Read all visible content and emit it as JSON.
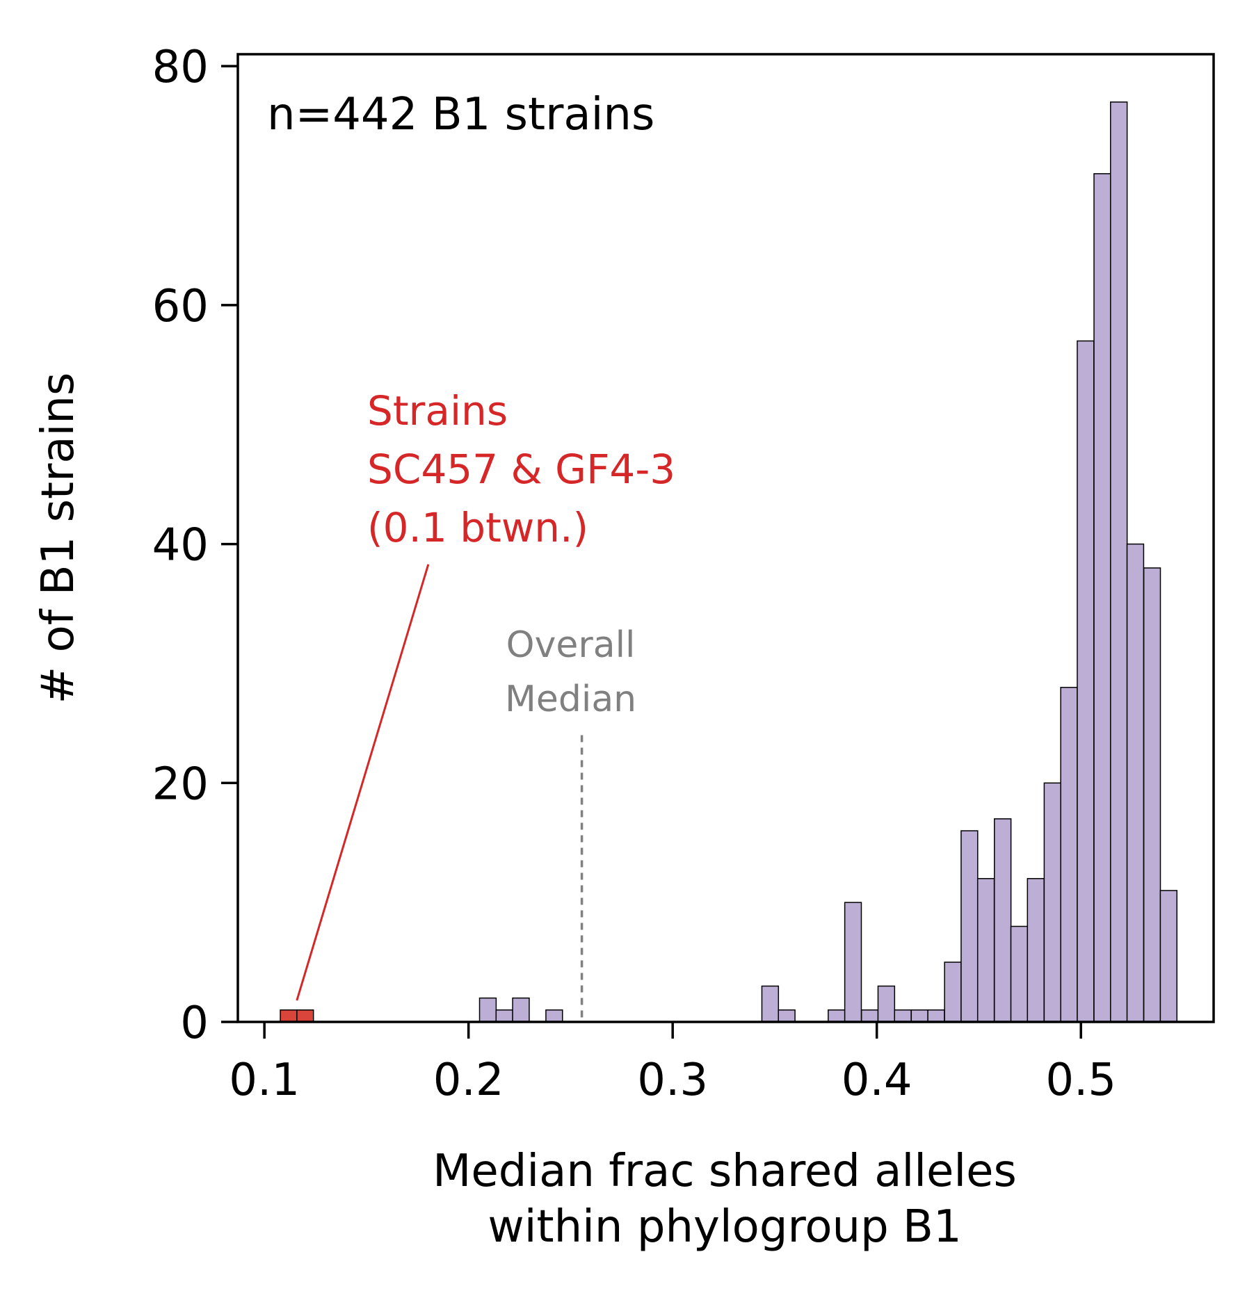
{
  "chart_data": {
    "type": "bar",
    "subtype": "histogram",
    "annotation_n": "n=442 B1 strains",
    "xlabel_lines": [
      "Median frac shared alleles",
      "within phylogroup B1"
    ],
    "ylabel": "# of B1 strains",
    "xlim": [
      0.087,
      0.565
    ],
    "ylim": [
      0,
      81
    ],
    "x_ticks": [
      0.1,
      0.2,
      0.3,
      0.4,
      0.5
    ],
    "x_tick_labels": [
      "0.1",
      "0.2",
      "0.3",
      "0.4",
      "0.5"
    ],
    "y_ticks": [
      0,
      20,
      40,
      60,
      80
    ],
    "y_tick_labels": [
      "0",
      "20",
      "40",
      "60",
      "80"
    ],
    "bin_width": 0.00813,
    "bins": [
      {
        "x0": 0.1078,
        "count": 1,
        "highlight": true
      },
      {
        "x0": 0.1159,
        "count": 1,
        "highlight": true
      },
      {
        "x0": 0.2054,
        "count": 2
      },
      {
        "x0": 0.2135,
        "count": 1
      },
      {
        "x0": 0.2216,
        "count": 2
      },
      {
        "x0": 0.2379,
        "count": 1
      },
      {
        "x0": 0.3437,
        "count": 3
      },
      {
        "x0": 0.3518,
        "count": 1
      },
      {
        "x0": 0.3762,
        "count": 1
      },
      {
        "x0": 0.3843,
        "count": 10
      },
      {
        "x0": 0.3925,
        "count": 1
      },
      {
        "x0": 0.4006,
        "count": 3
      },
      {
        "x0": 0.4087,
        "count": 1
      },
      {
        "x0": 0.4169,
        "count": 1
      },
      {
        "x0": 0.425,
        "count": 1
      },
      {
        "x0": 0.4332,
        "count": 5
      },
      {
        "x0": 0.4413,
        "count": 16
      },
      {
        "x0": 0.4494,
        "count": 12
      },
      {
        "x0": 0.4576,
        "count": 17
      },
      {
        "x0": 0.4657,
        "count": 8
      },
      {
        "x0": 0.4738,
        "count": 12
      },
      {
        "x0": 0.482,
        "count": 20
      },
      {
        "x0": 0.4901,
        "count": 28
      },
      {
        "x0": 0.4982,
        "count": 57
      },
      {
        "x0": 0.5064,
        "count": 71
      },
      {
        "x0": 0.5145,
        "count": 77
      },
      {
        "x0": 0.5226,
        "count": 40
      },
      {
        "x0": 0.5308,
        "count": 38
      },
      {
        "x0": 0.5389,
        "count": 11
      }
    ],
    "median_line": {
      "x": 0.2555,
      "y_top": 24,
      "label_lines": [
        "Overall",
        "Median"
      ],
      "color": "#808080"
    },
    "highlight_annotation": {
      "label_lines": [
        "Strains",
        "SC457 & GF4-3",
        "(0.1 btwn.)"
      ],
      "color": "#d62728",
      "arrow_to": {
        "x": 0.1159,
        "y": 1.8
      },
      "arrow_from": {
        "x": 0.1803,
        "y": 38.3
      }
    },
    "colors": {
      "bar_fill": "#bcaed4",
      "highlight_fill": "#d9453b",
      "edge": "#000000",
      "median": "#808080",
      "annotation": "#d62728"
    }
  }
}
